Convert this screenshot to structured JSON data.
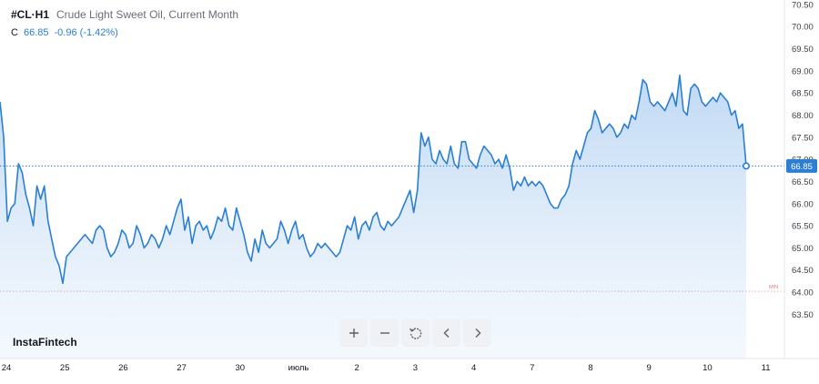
{
  "header": {
    "symbol": "#CL·H1",
    "description": "Crude Light Sweet Oil, Current Month"
  },
  "ohlc": {
    "label": "C",
    "close": "66.85",
    "change": "-0.96 (-1.42%)"
  },
  "brand": "InstaFintech",
  "toolbar": [
    "zoom-in",
    "zoom-out",
    "reset",
    "scroll-left",
    "scroll-right"
  ],
  "colors": {
    "line": "#2a7fd4",
    "fill": "#cfe2f7",
    "current": "#2a7fd4",
    "min": "#e07b7b",
    "axis": "#e3e6ec"
  },
  "chart_data": {
    "type": "area",
    "ylim": [
      62.5,
      70.6
    ],
    "y_ticks": [
      "70.50",
      "70.00",
      "69.50",
      "69.00",
      "68.50",
      "68.00",
      "67.50",
      "67.00",
      "66.50",
      "66.00",
      "65.50",
      "65.00",
      "64.50",
      "64.00",
      "63.50"
    ],
    "x_ticks": [
      "24",
      "25",
      "26",
      "27",
      "30",
      "июль",
      "2",
      "3",
      "4",
      "7",
      "8",
      "9",
      "10",
      "11"
    ],
    "current_value": 66.85,
    "current_label": "66.85",
    "min_value": 64.02,
    "min_label": "MIN",
    "series": [
      {
        "values": [
          68.3,
          67.5,
          65.6,
          65.9,
          66.0,
          66.9,
          66.7,
          66.2,
          65.9,
          65.5,
          66.4,
          66.1,
          66.4,
          65.6,
          65.2,
          64.8,
          64.6,
          64.2,
          64.8,
          64.9,
          65.0,
          65.1,
          65.2,
          65.3,
          65.2,
          65.1,
          65.4,
          65.5,
          65.4,
          65.0,
          64.8,
          64.9,
          65.1,
          65.4,
          65.3,
          65.0,
          65.1,
          65.5,
          65.3,
          65.0,
          65.1,
          65.3,
          65.2,
          65.0,
          65.2,
          65.5,
          65.3,
          65.6,
          65.9,
          66.1,
          65.4,
          65.7,
          65.1,
          65.5,
          65.6,
          65.4,
          65.5,
          65.2,
          65.4,
          65.7,
          65.6,
          65.9,
          65.5,
          65.4,
          65.9,
          65.6,
          65.3,
          64.9,
          64.7,
          65.2,
          64.9,
          65.4,
          65.1,
          65.0,
          65.1,
          65.2,
          65.6,
          65.4,
          65.1,
          65.4,
          65.6,
          65.2,
          65.3,
          65.0,
          64.8,
          64.9,
          65.1,
          65.0,
          65.1,
          65.0,
          64.9,
          64.8,
          64.9,
          65.2,
          65.5,
          65.4,
          65.7,
          65.2,
          65.5,
          65.6,
          65.4,
          65.7,
          65.8,
          65.5,
          65.4,
          65.6,
          65.5,
          65.6,
          65.7,
          65.9,
          66.1,
          66.3,
          65.8,
          66.3,
          67.6,
          67.3,
          67.5,
          67.0,
          66.9,
          67.2,
          67.0,
          66.9,
          67.3,
          66.9,
          66.8,
          67.4,
          67.4,
          67.0,
          66.9,
          66.8,
          67.1,
          67.3,
          67.2,
          67.1,
          66.9,
          67.0,
          66.8,
          67.1,
          66.8,
          66.3,
          66.5,
          66.4,
          66.6,
          66.4,
          66.5,
          66.4,
          66.5,
          66.4,
          66.2,
          66.0,
          65.9,
          65.9,
          66.1,
          66.2,
          66.4,
          66.9,
          67.2,
          67.0,
          67.3,
          67.6,
          67.7,
          68.1,
          67.9,
          67.6,
          67.7,
          67.8,
          67.7,
          67.5,
          67.6,
          67.8,
          67.7,
          68.0,
          67.9,
          68.3,
          68.8,
          68.7,
          68.3,
          68.2,
          68.3,
          68.2,
          68.1,
          68.3,
          68.5,
          68.2,
          68.9,
          68.1,
          68.0,
          68.6,
          68.7,
          68.6,
          68.3,
          68.2,
          68.3,
          68.4,
          68.3,
          68.5,
          68.4,
          68.3,
          68.0,
          68.1,
          67.7,
          67.8,
          66.85
        ]
      }
    ]
  }
}
